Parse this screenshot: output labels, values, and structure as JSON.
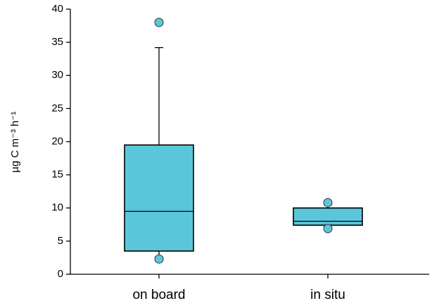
{
  "chart_data": {
    "type": "box",
    "ylabel": "µg C m⁻³ h⁻¹",
    "categories": [
      "on board",
      "in situ"
    ],
    "color": "#5ac6da",
    "boxes": [
      {
        "whislo": 2.6,
        "q1": 3.5,
        "med": 9.5,
        "q3": 19.5,
        "whishi": 34.2,
        "fliers": [
          2.3,
          38
        ]
      },
      {
        "whislo": 7.2,
        "q1": 7.4,
        "med": 8.0,
        "q3": 10.0,
        "whishi": 10.5,
        "fliers": [
          6.9,
          10.8
        ]
      }
    ],
    "ylim": [
      0,
      40
    ],
    "yticks": [
      0,
      5,
      10,
      15,
      20,
      25,
      30,
      35,
      40
    ]
  }
}
